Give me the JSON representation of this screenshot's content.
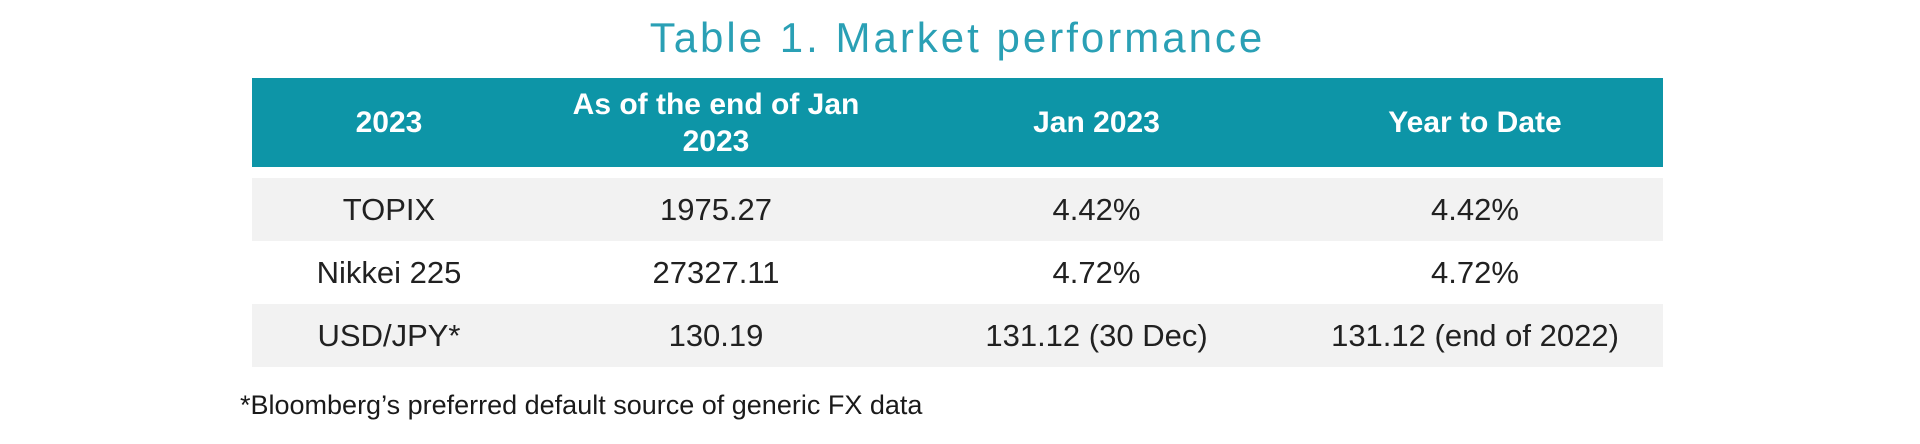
{
  "title": "Table 1. Market performance",
  "table": {
    "headers": [
      "2023",
      "As of the end of Jan 2023",
      "Jan 2023",
      "Year to Date"
    ],
    "rows": [
      [
        "TOPIX",
        "1975.27",
        "4.42%",
        "4.42%"
      ],
      [
        "Nikkei 225",
        "27327.11",
        "4.72%",
        "4.72%"
      ],
      [
        "USD/JPY*",
        "130.19",
        "131.12 (30 Dec)",
        "131.12 (end of 2022)"
      ]
    ]
  },
  "footnote": "*Bloomberg’s preferred default source of generic FX data",
  "colors": {
    "header_bg": "#0D95A7",
    "header_text": "#FFFFFF",
    "title_text": "#2AA0B5",
    "alt_row_bg": "#F2F2F2",
    "body_text": "#212121"
  },
  "chart_data": {
    "type": "table",
    "title": "Table 1. Market performance",
    "columns": [
      "2023",
      "As of the end of Jan 2023",
      "Jan 2023",
      "Year to Date"
    ],
    "rows": [
      {
        "instrument": "TOPIX",
        "as_of_end_of_jan_2023": 1975.27,
        "jan_2023": "4.42%",
        "year_to_date": "4.42%"
      },
      {
        "instrument": "Nikkei 225",
        "as_of_end_of_jan_2023": 27327.11,
        "jan_2023": "4.72%",
        "year_to_date": "4.72%"
      },
      {
        "instrument": "USD/JPY*",
        "as_of_end_of_jan_2023": 130.19,
        "jan_2023": "131.12 (30 Dec)",
        "year_to_date": "131.12 (end of 2022)"
      }
    ],
    "footnote": "*Bloomberg’s preferred default source of generic FX data"
  }
}
